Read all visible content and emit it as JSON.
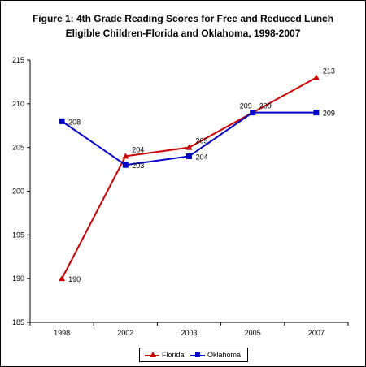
{
  "chart_data": {
    "type": "line",
    "title": "Figure 1: 4th Grade Reading Scores for Free and Reduced Lunch Eligible Children-Florida and Oklahoma, 1998-2007",
    "categories": [
      "1998",
      "2002",
      "2003",
      "2005",
      "2007"
    ],
    "ylim": [
      185,
      215
    ],
    "yticks": [
      185,
      190,
      195,
      200,
      205,
      210,
      215
    ],
    "grid": false,
    "legend_position": "bottom",
    "series": [
      {
        "name": "Florida",
        "values": [
          190,
          204,
          205,
          209,
          213
        ],
        "color": "#cc0000",
        "marker": "triangle"
      },
      {
        "name": "Oklahoma",
        "values": [
          208,
          203,
          204,
          209,
          209
        ],
        "color": "#0000cc",
        "marker": "square"
      }
    ]
  }
}
